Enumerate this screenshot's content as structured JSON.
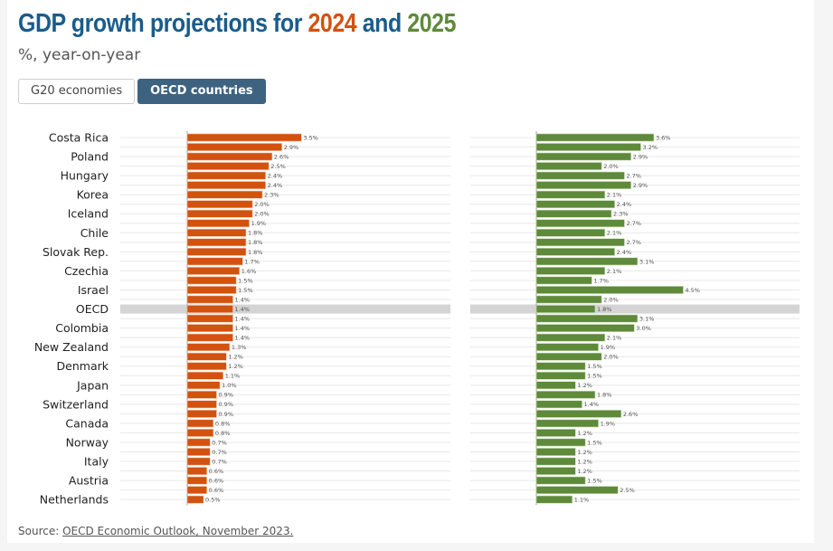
{
  "header": {
    "title_prefix": "GDP growth projections for ",
    "title_year1": "2024",
    "title_mid": " and ",
    "title_year2": "2025",
    "subtitle": "%, year-on-year"
  },
  "tabs": [
    {
      "label": "G20 economies",
      "active": false
    },
    {
      "label": "OECD countries",
      "active": true
    }
  ],
  "footer": {
    "source_prefix": "Source: ",
    "source_link": "OECD Economic Outlook, November 2023."
  },
  "colors": {
    "title": "#1a5c8a",
    "year2024": "#d2520f",
    "year2025": "#5e8a3a",
    "highlight_row": "#d4d4d4",
    "active_tab": "#3d6381"
  },
  "chart_data": {
    "type": "bar",
    "orientation": "horizontal",
    "title": "GDP growth projections for 2024 and 2025",
    "subtitle": "%, year-on-year",
    "categories": [
      "Costa Rica",
      "",
      "Poland",
      "",
      "Hungary",
      "",
      "Korea",
      "",
      "Iceland",
      "",
      "Chile",
      "",
      "Slovak Rep.",
      "",
      "Czechia",
      "",
      "Israel",
      "",
      "OECD",
      "",
      "Colombia",
      "",
      "New Zealand",
      "",
      "Denmark",
      "",
      "Japan",
      "",
      "Switzerland",
      "",
      "Canada",
      "",
      "Norway",
      "",
      "Italy",
      "",
      "Austria",
      "",
      "Netherlands"
    ],
    "highlight_category_index": 18,
    "series": [
      {
        "name": "2024",
        "color": "#d2520f",
        "values": [
          3.5,
          2.9,
          2.6,
          2.5,
          2.4,
          2.4,
          2.3,
          2.0,
          2.0,
          1.9,
          1.8,
          1.8,
          1.8,
          1.7,
          1.6,
          1.5,
          1.5,
          1.4,
          1.4,
          1.4,
          1.4,
          1.4,
          1.3,
          1.2,
          1.2,
          1.1,
          1.0,
          0.9,
          0.9,
          0.9,
          0.8,
          0.8,
          0.7,
          0.7,
          0.7,
          0.6,
          0.6,
          0.6,
          0.5
        ]
      },
      {
        "name": "2025",
        "color": "#5e8a3a",
        "values": [
          3.6,
          3.2,
          2.9,
          2.0,
          2.7,
          2.9,
          2.1,
          2.4,
          2.3,
          2.7,
          2.1,
          2.7,
          2.4,
          3.1,
          2.1,
          1.7,
          4.5,
          2.0,
          1.8,
          3.1,
          3.0,
          2.1,
          1.9,
          2.0,
          1.5,
          1.5,
          1.2,
          1.8,
          1.4,
          2.6,
          1.9,
          1.2,
          1.5,
          1.2,
          1.2,
          1.2,
          1.5,
          2.5,
          1.1
        ]
      }
    ],
    "value_suffix": "%",
    "xlabel": "",
    "ylabel": "",
    "grid": true,
    "legend": "none (years colored in title)"
  }
}
